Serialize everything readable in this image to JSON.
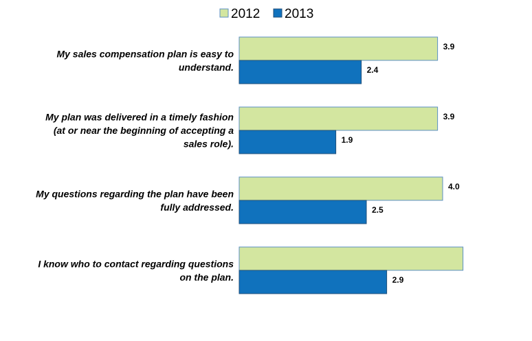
{
  "colors": {
    "series_2012": "#d3e6a0",
    "series_2012_stroke": "#5b8fc4",
    "series_2013": "#1072bd",
    "series_2013_stroke": "#1f4e79"
  },
  "chart_data": {
    "type": "bar",
    "orientation": "horizontal",
    "categories": [
      [
        "My sales compensation plan is easy to",
        "understand."
      ],
      [
        "My plan was delivered in a timely fashion",
        "(at or near the beginning of accepting a",
        "sales role)."
      ],
      [
        "My questions regarding the plan have been",
        "fully addressed."
      ],
      [
        "I know who to contact regarding questions",
        "on the plan."
      ]
    ],
    "series": [
      {
        "name": "2012",
        "values": [
          3.9,
          3.9,
          4.0,
          4.4
        ],
        "labels": [
          "3.9",
          "3.9",
          "4.0",
          ""
        ]
      },
      {
        "name": "2013",
        "values": [
          2.4,
          1.9,
          2.5,
          2.9
        ],
        "labels": [
          "2.4",
          "1.9",
          "2.5",
          "2.9"
        ]
      }
    ],
    "xlim": [
      0,
      5
    ],
    "legend_position": "top-center",
    "grid": false,
    "title": "",
    "xlabel": "",
    "ylabel": ""
  }
}
